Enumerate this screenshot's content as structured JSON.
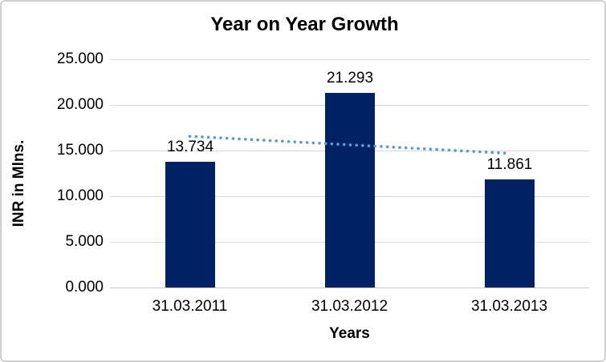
{
  "chart_data": {
    "type": "bar",
    "title": "Year on Year Growth",
    "xlabel": "Years",
    "ylabel": "INR in Mlns.",
    "categories": [
      "31.03.2011",
      "31.03.2012",
      "31.03.2013"
    ],
    "values": [
      13.734,
      21.293,
      11.861
    ],
    "data_labels": [
      "13.734",
      "21.293",
      "11.861"
    ],
    "ylim": [
      0,
      25
    ],
    "ytick_values": [
      0,
      5,
      10,
      15,
      20,
      25
    ],
    "ytick_labels": [
      "0.000",
      "5.000",
      "10.000",
      "15.000",
      "20.000",
      "25.000"
    ],
    "grid": true,
    "legend": "none",
    "bar_color": "#002163",
    "gridline_color": "#d9d9d9",
    "axis_line_color": "#c9c9c9",
    "trendline": {
      "type": "linear",
      "style": "dotted",
      "color": "#5b9bd5",
      "start_value": 16.566,
      "end_value": 14.693
    }
  }
}
